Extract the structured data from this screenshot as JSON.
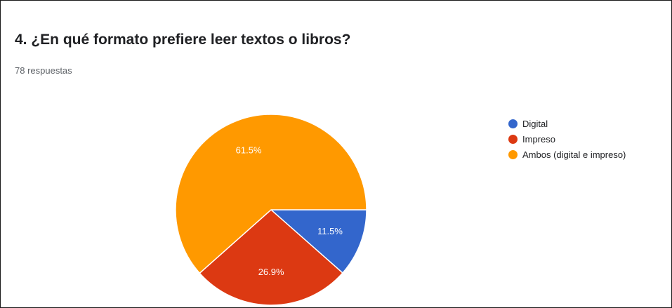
{
  "chart_data": {
    "type": "pie",
    "title": "4. ¿En qué formato prefiere leer textos o libros?",
    "subtitle": "78 respuestas",
    "legend_position": "right",
    "series": [
      {
        "name": "Digital",
        "value": 11.5,
        "label": "11.5%",
        "color": "#3366cc"
      },
      {
        "name": "Impreso",
        "value": 26.9,
        "label": "26.9%",
        "color": "#dc3912"
      },
      {
        "name": "Ambos (digital e impreso)",
        "value": 61.5,
        "label": "61.5%",
        "color": "#ff9900"
      }
    ]
  }
}
